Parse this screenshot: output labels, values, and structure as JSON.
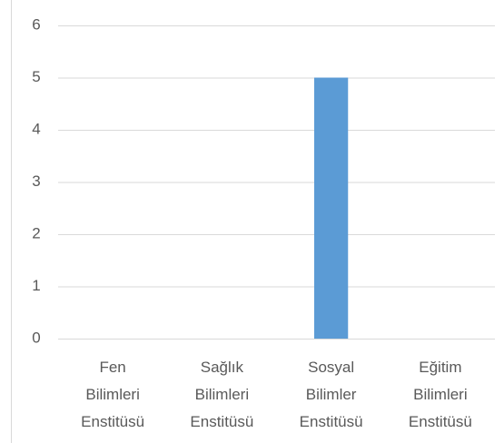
{
  "chart_data": {
    "type": "bar",
    "categories": [
      "Fen Bilimleri Enstitüsü",
      "Sağlık Bilimleri Enstitüsü",
      "Sosyal Bilimler Enstitüsü",
      "Eğitim Bilimleri Enstitüsü"
    ],
    "values": [
      0,
      0,
      5,
      0
    ],
    "color": "#5b9bd5",
    "ylim": [
      0,
      6
    ],
    "yticks": [
      0,
      1,
      2,
      3,
      4,
      5,
      6
    ],
    "grid": true
  }
}
